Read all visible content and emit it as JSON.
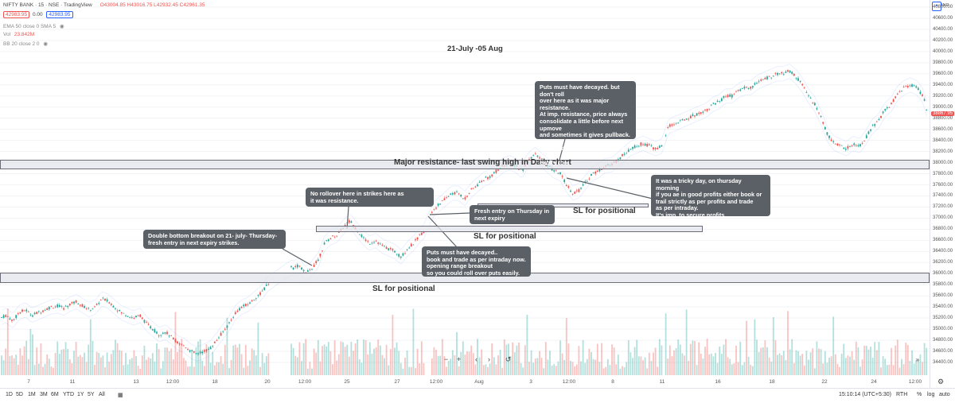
{
  "header": {
    "symbol": "NIFTY BANK · 15 · NSE · TradingView",
    "ohlc": "O43004.85 H43016.75 L42932.45 C42961.35",
    "bid": "42983.95",
    "spread": "0.00",
    "ask": "42983.95",
    "indicators": [
      "EMA 50 close 0 SMA 5",
      "Vol",
      "BB 20 close 2 0"
    ],
    "vol_value": "23.842M",
    "currency": "INR"
  },
  "annotation_title": "21-July -05 Aug",
  "zones": [
    {
      "label": "Major resistance- last swing high in Daily chart"
    },
    {
      "label": "SL for positional"
    },
    {
      "label": "SL for positional"
    },
    {
      "label": "SL for positional"
    }
  ],
  "notes": [
    "Double bottom breakout on 21- july- Thursday-\nfresh entry in next expiry strikes.",
    "No rollover here in strikes here as\nit was resistance.",
    "Puts must have decayed..\nbook and trade as per intraday now.\nopening range breakout\nso you could roll over puts easily.",
    "Fresh entry on Thursday in\nnext expiry",
    "Puts must have decayed. but don't roll\nover here as it was major resistance.\nAt imp. resistance, price always\nconsolidate a little before next upmove\n and sometimes it gives pullback.\n\nBook puts and trade intraday as it was\n expiry too.",
    "It was a tricky day, on thursday morning\n if you ae in good profits either book or\ntrail strictly as per profits and trade\nas per intraday.\nIt's imp. to secure profits\n in option selling."
  ],
  "price_axis": {
    "labels": [
      "40800.00",
      "40600.00",
      "40400.00",
      "40200.00",
      "40000.00",
      "39800.00",
      "39600.00",
      "39400.00",
      "39200.00",
      "39000.00",
      "38800.00",
      "38600.00",
      "38400.00",
      "38200.00",
      "38000.00",
      "37800.00",
      "37600.00",
      "37400.00",
      "37200.00",
      "37000.00",
      "36800.00",
      "36600.00",
      "36400.00",
      "36200.00",
      "36000.00",
      "35800.00",
      "35600.00",
      "35400.00",
      "35200.00",
      "35000.00",
      "34800.00",
      "34600.00",
      "34400.00"
    ],
    "last_price": "38867.95"
  },
  "time_axis": {
    "labels": [
      "7",
      "11",
      "13",
      "12:00",
      "18",
      "20",
      "12:00",
      "25",
      "27",
      "12:00",
      "Aug",
      "3",
      "12:00",
      "8",
      "11",
      "16",
      "18",
      "22",
      "24",
      "12:00"
    ]
  },
  "toolbar": {
    "ranges": [
      "1D",
      "5D",
      "1M",
      "3M",
      "6M",
      "YTD",
      "1Y",
      "5Y",
      "All"
    ],
    "time": "15:10:14 (UTC+5:30)",
    "session": "RTH",
    "percent": "%",
    "log": "log",
    "auto": "auto"
  },
  "nav": {
    "zoom_out": "−",
    "zoom_in": "+",
    "left": "‹",
    "right": "›",
    "reset": "↺"
  },
  "colors": {
    "up": "#26a69a",
    "down": "#ef5350",
    "zone": "#e1e4eb",
    "note_bg": "#5a6066",
    "ma": "#f0a030",
    "bb": "#2962ff"
  },
  "chart_data": {
    "type": "candlestick",
    "title": "21-July -05 Aug",
    "ylim": [
      34200,
      40900
    ],
    "price_path": [
      [
        0,
        35200
      ],
      [
        8,
        35250
      ],
      [
        16,
        35150
      ],
      [
        24,
        35300
      ],
      [
        32,
        35350
      ],
      [
        40,
        35250
      ],
      [
        48,
        35300
      ],
      [
        56,
        35350
      ],
      [
        64,
        35400
      ],
      [
        72,
        35420
      ],
      [
        80,
        35380
      ],
      [
        88,
        35450
      ],
      [
        96,
        35500
      ],
      [
        104,
        35420
      ],
      [
        112,
        35350
      ],
      [
        120,
        35400
      ],
      [
        128,
        35550
      ],
      [
        136,
        35500
      ],
      [
        144,
        35400
      ],
      [
        152,
        35300
      ],
      [
        160,
        35250
      ],
      [
        168,
        35200
      ],
      [
        176,
        35250
      ],
      [
        184,
        35100
      ],
      [
        192,
        35000
      ],
      [
        200,
        34900
      ],
      [
        208,
        34950
      ],
      [
        216,
        34850
      ],
      [
        224,
        34750
      ],
      [
        232,
        34700
      ],
      [
        240,
        34600
      ],
      [
        248,
        34550
      ],
      [
        256,
        34600
      ],
      [
        264,
        34650
      ],
      [
        272,
        34800
      ],
      [
        280,
        34950
      ],
      [
        288,
        35100
      ],
      [
        296,
        35300
      ],
      [
        304,
        35400
      ],
      [
        312,
        35450
      ],
      [
        320,
        35550
      ],
      [
        328,
        35650
      ],
      [
        336,
        35800
      ],
      [
        344,
        35950
      ],
      [
        352,
        36050
      ],
      [
        360,
        36150
      ],
      [
        368,
        36100
      ],
      [
        376,
        36150
      ],
      [
        384,
        36000
      ],
      [
        392,
        36100
      ],
      [
        400,
        36250
      ],
      [
        408,
        36550
      ],
      [
        416,
        36650
      ],
      [
        424,
        36700
      ],
      [
        432,
        36850
      ],
      [
        440,
        36950
      ],
      [
        448,
        36800
      ],
      [
        456,
        36650
      ],
      [
        464,
        36550
      ],
      [
        472,
        36600
      ],
      [
        480,
        36500
      ],
      [
        488,
        36450
      ],
      [
        496,
        36400
      ],
      [
        504,
        36300
      ],
      [
        512,
        36450
      ],
      [
        520,
        36550
      ],
      [
        528,
        36700
      ],
      [
        536,
        36800
      ],
      [
        544,
        37150
      ],
      [
        552,
        37250
      ],
      [
        560,
        37350
      ],
      [
        568,
        37450
      ],
      [
        576,
        37450
      ],
      [
        584,
        37350
      ],
      [
        592,
        37500
      ],
      [
        600,
        37600
      ],
      [
        608,
        37700
      ],
      [
        616,
        37750
      ],
      [
        624,
        37850
      ],
      [
        632,
        37950
      ],
      [
        640,
        38000
      ],
      [
        648,
        37950
      ],
      [
        656,
        37850
      ],
      [
        664,
        38050
      ],
      [
        672,
        38150
      ],
      [
        680,
        38050
      ],
      [
        688,
        37950
      ],
      [
        696,
        37850
      ],
      [
        704,
        37800
      ],
      [
        712,
        37600
      ],
      [
        720,
        37450
      ],
      [
        728,
        37500
      ],
      [
        736,
        37650
      ],
      [
        744,
        37800
      ],
      [
        752,
        37850
      ],
      [
        760,
        37950
      ],
      [
        768,
        37950
      ],
      [
        776,
        38050
      ],
      [
        784,
        38150
      ],
      [
        792,
        38250
      ],
      [
        800,
        38300
      ],
      [
        808,
        38350
      ],
      [
        816,
        38300
      ],
      [
        824,
        38250
      ],
      [
        832,
        38300
      ],
      [
        840,
        38650
      ],
      [
        848,
        38700
      ],
      [
        856,
        38750
      ],
      [
        864,
        38800
      ],
      [
        872,
        38850
      ],
      [
        880,
        38900
      ],
      [
        888,
        38950
      ],
      [
        896,
        39050
      ],
      [
        904,
        39100
      ],
      [
        912,
        39200
      ],
      [
        920,
        39200
      ],
      [
        928,
        39300
      ],
      [
        936,
        39350
      ],
      [
        944,
        39350
      ],
      [
        952,
        39450
      ],
      [
        960,
        39500
      ],
      [
        968,
        39550
      ],
      [
        976,
        39600
      ],
      [
        984,
        39600
      ],
      [
        992,
        39650
      ],
      [
        1000,
        39550
      ],
      [
        1008,
        39400
      ],
      [
        1016,
        39200
      ],
      [
        1024,
        39050
      ],
      [
        1032,
        38800
      ],
      [
        1040,
        38500
      ],
      [
        1048,
        38350
      ],
      [
        1056,
        38300
      ],
      [
        1064,
        38250
      ],
      [
        1072,
        38350
      ],
      [
        1080,
        38300
      ],
      [
        1088,
        38450
      ],
      [
        1096,
        38650
      ],
      [
        1104,
        38750
      ],
      [
        1112,
        38950
      ],
      [
        1120,
        39050
      ],
      [
        1128,
        39250
      ],
      [
        1136,
        39350
      ],
      [
        1144,
        39400
      ],
      [
        1152,
        39350
      ],
      [
        1160,
        39200
      ],
      [
        1166,
        38867
      ]
    ]
  }
}
